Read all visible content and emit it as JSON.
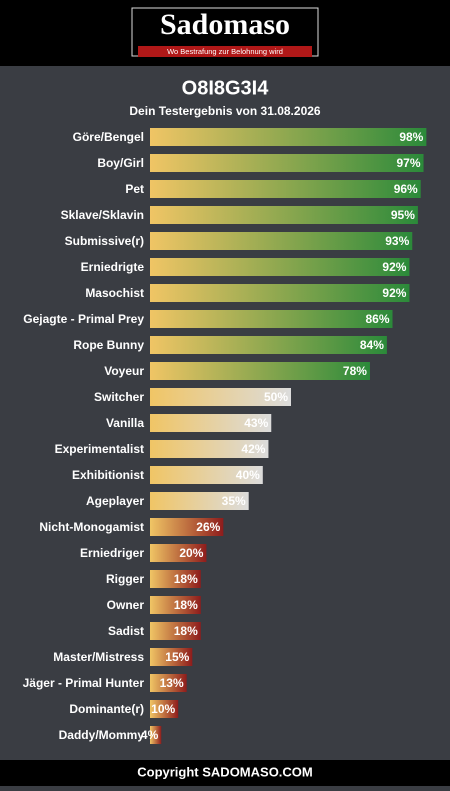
{
  "header": {
    "logo": "Sadomaso",
    "tagline": "Wo Bestrafung zur Belohnung wird"
  },
  "chart_data": {
    "type": "bar",
    "title": "O8I8G3I4",
    "subtitle": "Dein Testergebnis von 31.08.2026",
    "categories": [
      "Göre/Bengel",
      "Boy/Girl",
      "Pet",
      "Sklave/Sklavin",
      "Submissive(r)",
      "Erniedrigte",
      "Masochist",
      "Gejagte - Primal Prey",
      "Rope Bunny",
      "Voyeur",
      "Switcher",
      "Vanilla",
      "Experimentalist",
      "Exhibitionist",
      "Ageplayer",
      "Nicht-Monogamist",
      "Erniedriger",
      "Rigger",
      "Owner",
      "Sadist",
      "Master/Mistress",
      "Jäger - Primal Hunter",
      "Dominante(r)",
      "Daddy/Mommy"
    ],
    "values": [
      98,
      97,
      96,
      95,
      93,
      92,
      92,
      86,
      84,
      78,
      50,
      43,
      42,
      40,
      35,
      26,
      20,
      18,
      18,
      18,
      15,
      13,
      10,
      4
    ],
    "value_labels": [
      "98%",
      "97%",
      "96%",
      "95%",
      "93%",
      "92%",
      "92%",
      "86%",
      "84%",
      "78%",
      "50%",
      "43%",
      "42%",
      "40%",
      "35%",
      "26%",
      "20%",
      "18%",
      "18%",
      "18%",
      "15%",
      "13%",
      "10%",
      "4%"
    ],
    "gradient_start": "#f0c565",
    "colors": [
      "#2b8a3a",
      "#2b8a3a",
      "#2b8a3a",
      "#2b8a3a",
      "#2b8a3a",
      "#2b8a3a",
      "#2b8a3a",
      "#2b8a3a",
      "#2b8a3a",
      "#2b8a3a",
      "#dcdcdc",
      "#dcdcdc",
      "#dcdcdc",
      "#dcdcdc",
      "#dcdcdc",
      "#8e1c1c",
      "#8e1c1c",
      "#8e1c1c",
      "#8e1c1c",
      "#8e1c1c",
      "#8e1c1c",
      "#8e1c1c",
      "#8e1c1c",
      "#8e1c1c"
    ],
    "xlim": [
      0,
      100
    ]
  },
  "footer": {
    "text": "Copyright SADOMASO.COM"
  }
}
